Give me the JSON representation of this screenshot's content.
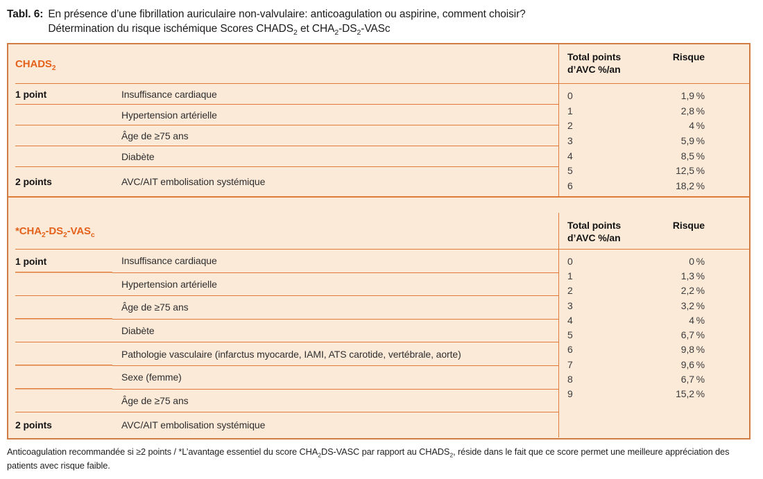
{
  "title": {
    "label": "Tabl. 6:",
    "line1": "En présence d’une fibrillation auriculaire non-valvulaire: anticoagulation ou aspirine, comment choisir?",
    "line2": {
      "p0": "Détermination du risque ischémique Scores CHADS",
      "s0": "2",
      "p1": " et CHA",
      "s1": "2",
      "p2": "-DS",
      "s2": "2",
      "p3": "-VASc"
    }
  },
  "colors": {
    "accent_orange_text": "#e4611b",
    "line_orange": "#df7a38",
    "outer_border": "#cf7c45",
    "panel_fill": "#fcead9"
  },
  "table1": {
    "score": {
      "p0": "CHADS",
      "s0": "2"
    },
    "points_header": {
      "line1": "Total points",
      "line2": "d’AVC %/an"
    },
    "risque_header": "Risque",
    "rows": [
      {
        "label": "1 point",
        "criteria": "Insuffisance cardiaque"
      },
      {
        "label": "",
        "criteria": "Hypertension artérielle"
      },
      {
        "label": "",
        "criteria": "Âge de ≥75 ans"
      },
      {
        "label": "",
        "criteria": "Diabète"
      },
      {
        "label": "2 points",
        "criteria": "AVC/AIT embolisation systémique"
      }
    ],
    "points": [
      {
        "pts": "0",
        "risk": "1,9 %"
      },
      {
        "pts": "1",
        "risk": "2,8 %"
      },
      {
        "pts": "2",
        "risk": "4 %"
      },
      {
        "pts": "3",
        "risk": "5,9 %"
      },
      {
        "pts": "4",
        "risk": "8,5 %"
      },
      {
        "pts": "5",
        "risk": "12,5 %"
      },
      {
        "pts": "6",
        "risk": "18,2 %"
      }
    ]
  },
  "table2": {
    "score": {
      "p0": "*CHA",
      "s0": "2",
      "p1": "-DS",
      "s1": "2",
      "p2": "-VAS",
      "s2": "c"
    },
    "points_header": {
      "line1": "Total points",
      "line2": "d’AVC %/an"
    },
    "risque_header": "Risque",
    "rows": [
      {
        "label": "1 point",
        "criteria": "Insuffisance cardiaque"
      },
      {
        "label": "",
        "criteria": "Hypertension artérielle"
      },
      {
        "label": "",
        "criteria": "Âge de ≥75 ans"
      },
      {
        "label": "",
        "criteria": "Diabète"
      },
      {
        "label": "",
        "criteria": "Pathologie vasculaire (infarctus myocarde, IAMI, ATS carotide, vertébrale, aorte)"
      },
      {
        "label": "",
        "criteria": "Sexe (femme)"
      },
      {
        "label": "",
        "criteria": "Âge de ≥75 ans"
      },
      {
        "label": "2 points",
        "criteria": "AVC/AIT embolisation systémique"
      }
    ],
    "points": [
      {
        "pts": "0",
        "risk": "0 %"
      },
      {
        "pts": "1",
        "risk": "1,3 %"
      },
      {
        "pts": "2",
        "risk": "2,2 %"
      },
      {
        "pts": "3",
        "risk": "3,2 %"
      },
      {
        "pts": "4",
        "risk": "4 %"
      },
      {
        "pts": "5",
        "risk": "6,7 %"
      },
      {
        "pts": "6",
        "risk": "9,8 %"
      },
      {
        "pts": "7",
        "risk": "9,6 %"
      },
      {
        "pts": "8",
        "risk": "6,7 %"
      },
      {
        "pts": "9",
        "risk": "15,2 %"
      }
    ]
  },
  "footnote": {
    "p0": "Anticoagulation recommandée si ≥2 points / *L’avantage essentiel du score CHA",
    "s0": "2",
    "p1": "DS-VASC par rapport au CHADS",
    "s1": "2",
    "p2": ", réside dans le fait que ce score permet une meilleure appréciation des patients avec risque faible."
  }
}
